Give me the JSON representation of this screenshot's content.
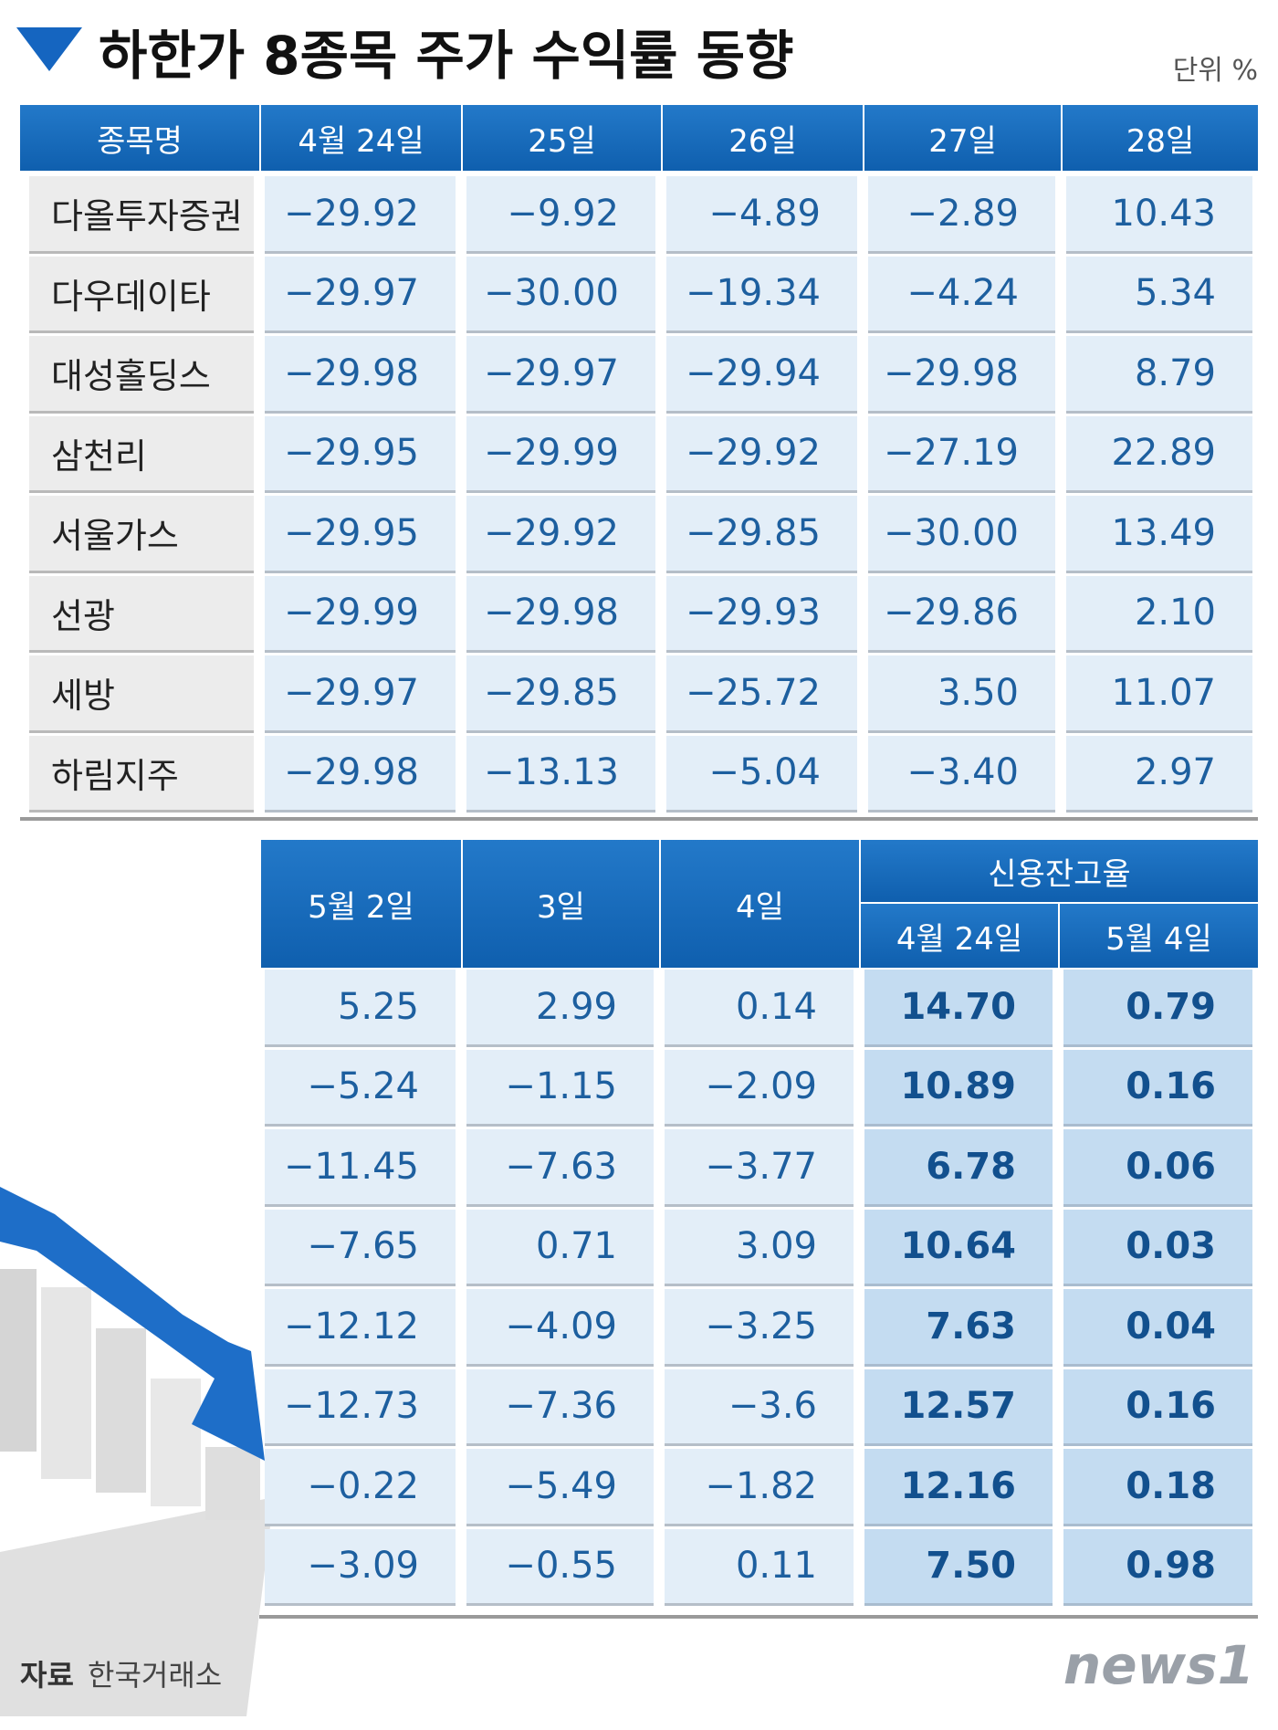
{
  "header": {
    "title": "하한가 8종목 주가 수익률 동향",
    "unit": "단위 %"
  },
  "table1": {
    "headers": [
      "종목명",
      "4월 24일",
      "25일",
      "26일",
      "27일",
      "28일"
    ],
    "rows": [
      [
        "다올투자증권",
        "−29.92",
        "−9.92",
        "−4.89",
        "−2.89",
        "10.43"
      ],
      [
        "다우데이타",
        "−29.97",
        "−30.00",
        "−19.34",
        "−4.24",
        "5.34"
      ],
      [
        "대성홀딩스",
        "−29.98",
        "−29.97",
        "−29.94",
        "−29.98",
        "8.79"
      ],
      [
        "삼천리",
        "−29.95",
        "−29.99",
        "−29.92",
        "−27.19",
        "22.89"
      ],
      [
        "서울가스",
        "−29.95",
        "−29.92",
        "−29.85",
        "−30.00",
        "13.49"
      ],
      [
        "선광",
        "−29.99",
        "−29.98",
        "−29.93",
        "−29.86",
        "2.10"
      ],
      [
        "세방",
        "−29.97",
        "−29.85",
        "−25.72",
        "3.50",
        "11.07"
      ],
      [
        "하림지주",
        "−29.98",
        "−13.13",
        "−5.04",
        "−3.40",
        "2.97"
      ]
    ]
  },
  "table2": {
    "headers": [
      "5월 2일",
      "3일",
      "4일"
    ],
    "group": "신용잔고율",
    "subheaders": [
      "4월 24일",
      "5월 4일"
    ],
    "rows": [
      [
        "5.25",
        "2.99",
        "0.14",
        "14.70",
        "0.79"
      ],
      [
        "−5.24",
        "−1.15",
        "−2.09",
        "10.89",
        "0.16"
      ],
      [
        "−11.45",
        "−7.63",
        "−3.77",
        "6.78",
        "0.06"
      ],
      [
        "−7.65",
        "0.71",
        "3.09",
        "10.64",
        "0.03"
      ],
      [
        "−12.12",
        "−4.09",
        "−3.25",
        "7.63",
        "0.04"
      ],
      [
        "−12.73",
        "−7.36",
        "−3.6",
        "12.57",
        "0.16"
      ],
      [
        "−0.22",
        "−5.49",
        "−1.82",
        "12.16",
        "0.18"
      ],
      [
        "−3.09",
        "−0.55",
        "0.11",
        "7.50",
        "0.98"
      ]
    ]
  },
  "footer": {
    "source_label": "자료",
    "source": "한국거래소",
    "logo": "news1"
  }
}
